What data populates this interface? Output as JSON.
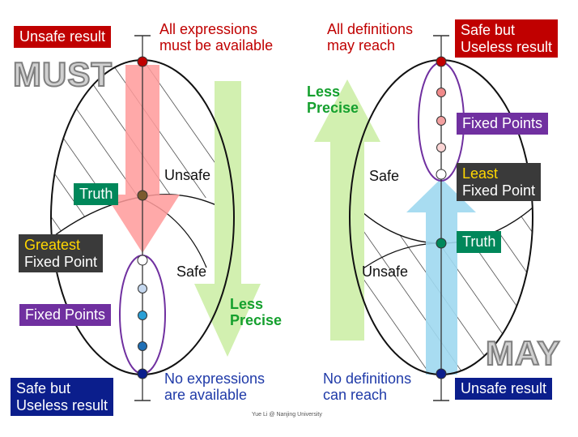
{
  "must": {
    "title": "MUST",
    "top_result": "Unsafe result",
    "top_label": "All expressions\nmust be available",
    "truth": "Truth",
    "greatest_word": "Greatest",
    "fixed_point": "Fixed Point",
    "fixed_points": "Fixed Points",
    "unsafe": "Unsafe",
    "safe": "Safe",
    "less_precise": "Less\nPrecise",
    "bottom_result": "Safe but\nUseless result",
    "bottom_label": "No expressions\nare available"
  },
  "may": {
    "title": "MAY",
    "top_label": "All definitions\nmay reach",
    "top_result": "Safe but\nUseless result",
    "less_precise": "Less\nPrecise",
    "fixed_points": "Fixed Points",
    "least_word": "Least",
    "fixed_point": "Fixed Point",
    "safe": "Safe",
    "truth": "Truth",
    "unsafe": "Unsafe",
    "bottom_label": "No definitions\ncan reach",
    "bottom_result": "Unsafe result"
  },
  "footer": "Yue Li @ Nanjing University",
  "colors": {
    "red_box": "#c00000",
    "navy_box": "#0b1e8c",
    "green_box": "#00875a",
    "purple_box": "#7030a0",
    "dark_box": "#3a3a3a",
    "down_arrow": "#ff9a9a",
    "up_arrow": "#9ed8f0",
    "precise_arrow": "#d2f0b0"
  }
}
